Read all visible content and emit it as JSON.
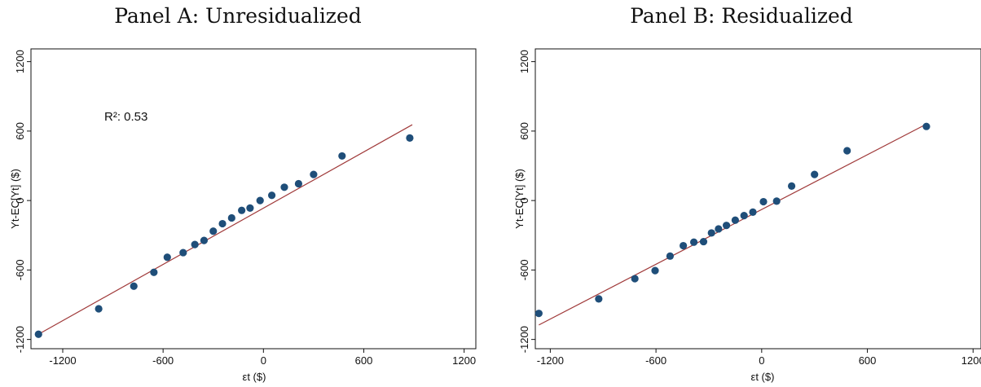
{
  "chart_data": [
    {
      "type": "scatter",
      "title": "Panel A: Unresidualized",
      "xlabel": "εt ($)",
      "ylabel": "Yt-EC[Yt] ($)",
      "xticks": [
        -1200,
        -600,
        0,
        600,
        1200
      ],
      "yticks": [
        -1200,
        -600,
        0,
        600,
        1200
      ],
      "xlim": [
        -1390,
        1270
      ],
      "ylim": [
        -1280,
        1310
      ],
      "annotation": "R²: 0.53",
      "grid": false,
      "series": [
        {
          "marker_color": "#1f4e79",
          "x": [
            -1345,
            -985,
            -775,
            -655,
            -575,
            -480,
            -410,
            -355,
            -300,
            -245,
            -190,
            -130,
            -80,
            -20,
            50,
            125,
            210,
            300,
            470,
            875
          ],
          "y": [
            -1155,
            -935,
            -740,
            -620,
            -490,
            -450,
            -380,
            -345,
            -265,
            -200,
            -150,
            -85,
            -65,
            0,
            45,
            115,
            145,
            225,
            385,
            540
          ]
        }
      ],
      "fit_line": {
        "color": "#a03a3a",
        "x": [
          -1345,
          890
        ],
        "y": [
          -1155,
          655
        ]
      }
    },
    {
      "type": "scatter",
      "title": "Panel B: Residualized",
      "xlabel": "εt ($)",
      "ylabel": "Yt-EC[Yt] ($)",
      "xticks": [
        -1200,
        -600,
        0,
        600,
        1200
      ],
      "yticks": [
        -1200,
        -600,
        0,
        600,
        1200
      ],
      "xlim": [
        -1285,
        1245
      ],
      "ylim": [
        -1280,
        1310
      ],
      "grid": false,
      "series": [
        {
          "marker_color": "#1f4e79",
          "x": [
            -1265,
            -925,
            -720,
            -605,
            -520,
            -445,
            -385,
            -330,
            -285,
            -245,
            -200,
            -150,
            -100,
            -50,
            10,
            85,
            170,
            300,
            485,
            935
          ],
          "y": [
            -975,
            -850,
            -675,
            -605,
            -480,
            -390,
            -360,
            -355,
            -280,
            -245,
            -215,
            -170,
            -130,
            -100,
            -10,
            -5,
            125,
            225,
            430,
            640
          ]
        }
      ],
      "fit_line": {
        "color": "#a03a3a",
        "x": [
          -1265,
          935
        ],
        "y": [
          -1075,
          660
        ]
      }
    }
  ]
}
